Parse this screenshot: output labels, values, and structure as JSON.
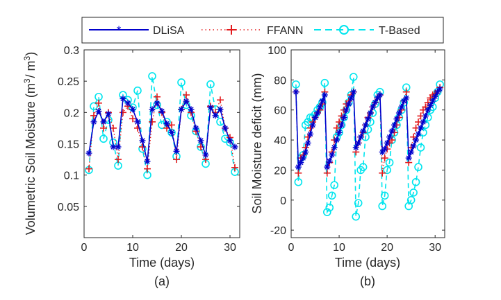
{
  "legend": {
    "entries": [
      {
        "label": "DLiSA",
        "color": "#0000cc",
        "marker": "asterisk",
        "line": "solid"
      },
      {
        "label": "FFANN",
        "color": "#e31a1c",
        "marker": "plus",
        "line": "dotted"
      },
      {
        "label": "T-Based",
        "color": "#00e5ee",
        "marker": "circle",
        "line": "dashed"
      }
    ]
  },
  "chart_data": [
    {
      "type": "line",
      "caption": "(a)",
      "xlabel": "Time (days)",
      "ylabel_parts": [
        "Volumetric Soil Moisture (m",
        "3",
        "/ m",
        "3",
        ")"
      ],
      "xlim": [
        0,
        32
      ],
      "ylim": [
        0,
        0.3
      ],
      "xticks": [
        0,
        10,
        20,
        30
      ],
      "yticks": [
        0.05,
        0.1,
        0.15,
        0.2,
        0.25,
        0.3
      ],
      "ytick_labels": [
        "0.05",
        "0.1",
        "0.15",
        "0.2",
        "0.25",
        "0.3"
      ],
      "x": [
        1,
        2,
        3,
        4,
        5,
        6,
        7,
        8,
        9,
        10,
        11,
        12,
        13,
        14,
        15,
        16,
        17,
        18,
        19,
        20,
        21,
        22,
        23,
        24,
        25,
        26,
        27,
        28,
        29,
        30,
        31
      ],
      "series": [
        {
          "name": "DLiSA",
          "values": [
            0.135,
            0.185,
            0.202,
            0.185,
            0.198,
            0.145,
            0.145,
            0.222,
            0.215,
            0.205,
            0.185,
            0.155,
            0.122,
            0.205,
            0.215,
            0.202,
            0.182,
            0.168,
            0.138,
            0.205,
            0.218,
            0.205,
            0.175,
            0.155,
            0.132,
            0.208,
            0.195,
            0.205,
            0.175,
            0.155,
            0.145
          ]
        },
        {
          "name": "FFANN",
          "values": [
            0.11,
            0.195,
            0.215,
            0.175,
            0.2,
            0.175,
            0.125,
            0.2,
            0.21,
            0.19,
            0.175,
            0.145,
            0.11,
            0.185,
            0.225,
            0.2,
            0.175,
            0.18,
            0.125,
            0.205,
            0.228,
            0.2,
            0.17,
            0.145,
            0.125,
            0.21,
            0.2,
            0.22,
            0.175,
            0.16,
            0.112
          ]
        },
        {
          "name": "T-Based",
          "values": [
            0.108,
            0.21,
            0.225,
            0.158,
            0.188,
            0.152,
            0.115,
            0.228,
            0.22,
            0.208,
            0.235,
            0.142,
            0.1,
            0.258,
            0.212,
            0.18,
            0.185,
            0.168,
            0.13,
            0.248,
            0.212,
            0.195,
            0.17,
            0.145,
            0.118,
            0.245,
            0.205,
            0.185,
            0.158,
            0.152,
            0.105
          ]
        }
      ]
    },
    {
      "type": "line",
      "caption": "(b)",
      "xlabel": "Time (days)",
      "ylabel": "Soil Moisture deficit (mm)",
      "xlim": [
        0,
        32
      ],
      "ylim": [
        -25,
        100
      ],
      "xticks": [
        0,
        10,
        20,
        30
      ],
      "yticks": [
        -20,
        0,
        20,
        40,
        60,
        80,
        100
      ],
      "x": [
        1,
        1.5,
        2,
        2.5,
        3,
        3.5,
        4,
        4.5,
        5,
        5.5,
        6,
        6.5,
        7,
        7.5,
        8,
        8.5,
        9,
        9.5,
        10,
        10.5,
        11,
        11.5,
        12,
        12.5,
        13,
        13.5,
        14,
        14.5,
        15,
        15.5,
        16,
        16.5,
        17,
        17.5,
        18,
        18.5,
        19,
        19.5,
        20,
        20.5,
        21,
        21.5,
        22,
        22.5,
        23,
        23.5,
        24,
        24.5,
        25,
        25.5,
        26,
        26.5,
        27,
        27.5,
        28,
        28.5,
        29,
        29.5,
        30,
        30.5,
        31
      ],
      "series": [
        {
          "name": "DLiSA",
          "values": [
            72,
            22,
            25,
            28,
            32,
            38,
            44,
            50,
            55,
            58,
            62,
            66,
            70,
            22,
            26,
            30,
            35,
            40,
            45,
            50,
            55,
            60,
            64,
            68,
            72,
            35,
            38,
            42,
            46,
            50,
            54,
            58,
            62,
            65,
            68,
            70,
            32,
            34,
            38,
            42,
            46,
            50,
            54,
            58,
            62,
            66,
            68,
            28,
            32,
            36,
            40,
            44,
            48,
            52,
            56,
            60,
            63,
            66,
            69,
            72,
            74
          ]
        },
        {
          "name": "FFANN",
          "values": [
            72,
            18,
            28,
            30,
            35,
            42,
            48,
            52,
            55,
            58,
            60,
            64,
            72,
            18,
            25,
            32,
            40,
            48,
            52,
            56,
            60,
            64,
            66,
            70,
            72,
            32,
            38,
            42,
            45,
            50,
            55,
            58,
            62,
            65,
            68,
            70,
            18,
            28,
            34,
            38,
            40,
            45,
            50,
            55,
            60,
            66,
            72,
            25,
            35,
            42,
            48,
            52,
            56,
            60,
            62,
            65,
            68,
            70,
            71,
            72,
            75
          ]
        },
        {
          "name": "T-Based",
          "values": [
            77,
            12,
            28,
            30,
            50,
            52,
            55,
            55,
            57,
            60,
            62,
            65,
            78,
            -8,
            -5,
            3,
            10,
            42,
            45,
            50,
            55,
            60,
            65,
            70,
            82,
            -11,
            -2,
            20,
            22,
            42,
            47,
            52,
            58,
            64,
            70,
            72,
            -4,
            3,
            20,
            25,
            40,
            45,
            50,
            55,
            60,
            65,
            75,
            -4,
            0,
            5,
            12,
            22,
            35,
            45,
            50,
            55,
            60,
            62,
            68,
            72,
            77
          ]
        }
      ]
    }
  ]
}
